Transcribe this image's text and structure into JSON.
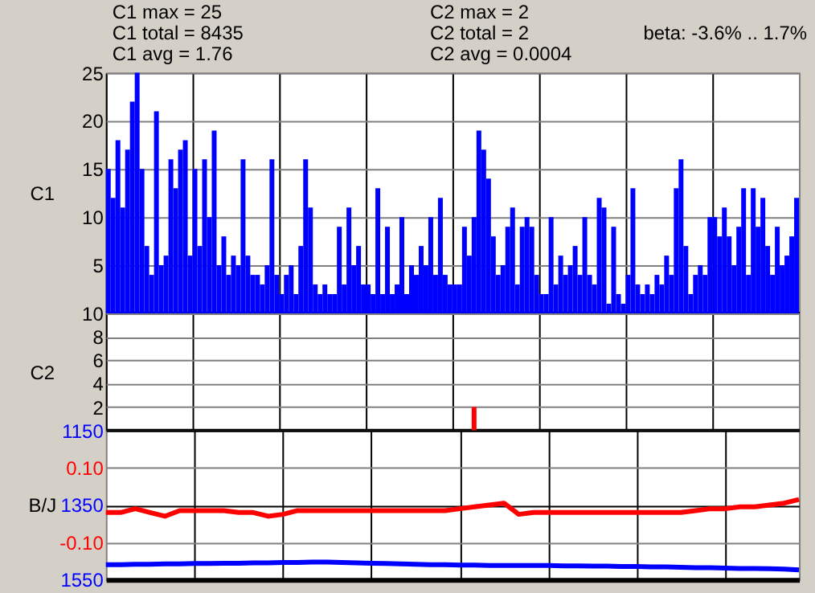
{
  "chart_data": [
    {
      "type": "bar",
      "ylabel": "C1",
      "color": "#0000ff",
      "annotations": [
        "C1 max = 25",
        "C1 total = 8435",
        "C1 avg = 1.76"
      ],
      "categories": [
        null,
        null,
        null,
        null,
        null,
        null,
        null,
        null,
        null,
        null,
        null,
        null,
        null,
        null,
        null,
        null,
        null,
        null,
        null,
        null,
        null,
        null,
        null,
        null,
        null,
        null,
        null,
        null,
        null,
        null,
        null,
        null,
        null,
        null,
        null,
        null,
        null,
        null,
        null,
        null,
        null,
        null,
        null,
        null,
        null,
        null,
        null,
        null,
        null,
        null,
        null,
        null,
        null,
        null,
        null,
        null,
        null,
        null,
        null,
        null,
        null,
        null,
        null,
        null,
        null,
        null,
        null,
        null,
        null,
        null,
        null,
        null,
        null,
        null,
        null,
        null,
        null,
        null,
        null,
        null,
        null,
        null,
        null,
        null,
        null,
        null,
        null,
        null,
        null,
        null,
        null,
        null,
        null,
        null,
        null,
        null,
        null,
        null,
        null,
        null,
        null,
        null,
        null,
        null,
        null,
        null,
        null,
        null,
        null,
        null,
        null,
        null,
        null,
        null,
        null,
        null,
        null,
        null,
        null,
        null,
        null,
        null,
        null,
        null,
        null,
        null,
        null,
        null,
        null,
        null,
        null,
        null,
        null,
        null,
        null,
        null,
        null,
        null,
        null,
        null,
        null,
        null,
        null,
        null
      ],
      "values": [
        15,
        12,
        18,
        11,
        17,
        22,
        25,
        15,
        7,
        4,
        21,
        5,
        6,
        16,
        13,
        17,
        18,
        6,
        15,
        7,
        16,
        10,
        19,
        5,
        8,
        4,
        6,
        5,
        16,
        6,
        4,
        4,
        3,
        5,
        16,
        4,
        2,
        4,
        5,
        2,
        7,
        16,
        11,
        3,
        2,
        3,
        2,
        2,
        9,
        3,
        11,
        5,
        7,
        3,
        3,
        2,
        13,
        2,
        9,
        2,
        3,
        10,
        2,
        5,
        4,
        7,
        5,
        10,
        4,
        12,
        4,
        3,
        3,
        3,
        9,
        6,
        10,
        19,
        17,
        14,
        8,
        4,
        5,
        9,
        11,
        3,
        9,
        10,
        9,
        4,
        2,
        2,
        10,
        3,
        6,
        4,
        5,
        7,
        4,
        10,
        4,
        3,
        12,
        11,
        1,
        9,
        2,
        1,
        4,
        13,
        3,
        2,
        3,
        2,
        4,
        3,
        6,
        4,
        13,
        16,
        7,
        2,
        4,
        5,
        4,
        10,
        10,
        8,
        11,
        8,
        5,
        9,
        13,
        4,
        13,
        9,
        12,
        7,
        4,
        9,
        5,
        6,
        8,
        12
      ],
      "ylim": [
        0,
        25
      ],
      "yticks": [
        5,
        10,
        15,
        20,
        25
      ],
      "grid": true
    },
    {
      "type": "bar",
      "ylabel": "C2",
      "color": "#ff0000",
      "annotations": [
        "C2 max = 2",
        "C2 total = 2",
        "C2 avg = 0.0004"
      ],
      "categories": [
        null,
        null,
        null,
        null,
        null,
        null,
        null,
        null,
        null,
        null,
        null,
        null,
        null,
        null,
        null,
        null,
        null,
        null,
        null,
        null,
        null,
        null,
        null,
        null,
        null,
        null,
        null,
        null,
        null,
        null,
        null,
        null,
        null,
        null,
        null,
        null,
        null,
        null,
        null,
        null,
        null,
        null,
        null,
        null,
        null,
        null,
        null,
        null,
        null,
        null,
        null,
        null,
        null,
        null,
        null,
        null,
        null,
        null,
        null,
        null,
        null,
        null,
        null,
        null,
        null,
        null,
        null,
        null,
        null,
        null,
        null,
        null,
        null,
        null,
        null,
        null,
        null,
        null,
        null,
        null,
        null,
        null,
        null,
        null,
        null,
        null,
        null,
        null,
        null,
        null,
        null,
        null,
        null,
        null,
        null,
        null,
        null,
        null,
        null,
        null,
        null,
        null,
        null,
        null,
        null,
        null,
        null,
        null,
        null,
        null,
        null,
        null,
        null,
        null,
        null,
        null,
        null,
        null,
        null,
        null,
        null,
        null,
        null,
        null,
        null,
        null,
        null,
        null,
        null,
        null,
        null,
        null,
        null,
        null,
        null,
        null,
        null,
        null,
        null,
        null,
        null,
        null,
        null,
        null
      ],
      "values": [
        0,
        0,
        0,
        0,
        0,
        0,
        0,
        0,
        0,
        0,
        0,
        0,
        0,
        0,
        0,
        0,
        0,
        0,
        0,
        0,
        0,
        0,
        0,
        0,
        0,
        0,
        0,
        0,
        0,
        0,
        0,
        0,
        0,
        0,
        0,
        0,
        0,
        0,
        0,
        0,
        0,
        0,
        0,
        0,
        0,
        0,
        0,
        0,
        0,
        0,
        0,
        0,
        0,
        0,
        0,
        0,
        0,
        0,
        0,
        0,
        0,
        0,
        0,
        0,
        0,
        0,
        0,
        0,
        0,
        0,
        0,
        0,
        0,
        0,
        0,
        0,
        2,
        0,
        0,
        0,
        0,
        0,
        0,
        0,
        0,
        0,
        0,
        0,
        0,
        0,
        0,
        0,
        0,
        0,
        0,
        0,
        0,
        0,
        0,
        0,
        0,
        0,
        0,
        0,
        0,
        0,
        0,
        0,
        0,
        0,
        0,
        0,
        0,
        0,
        0,
        0,
        0,
        0,
        0,
        0,
        0,
        0,
        0,
        0,
        0,
        0,
        0,
        0,
        0,
        0,
        0,
        0,
        0,
        0,
        0,
        0,
        0,
        0,
        0,
        0,
        0,
        0,
        0,
        0
      ],
      "ylim": [
        0,
        10
      ],
      "yticks": [
        2,
        4,
        6,
        8,
        10
      ],
      "grid": true
    },
    {
      "type": "line",
      "y2label": "B/J",
      "annotations": [
        "beta: -3.6% .. 1.7%"
      ],
      "categories": [
        null,
        null,
        null,
        null,
        null,
        null,
        null,
        null,
        null,
        null,
        null,
        null,
        null,
        null,
        null,
        null,
        null,
        null,
        null,
        null,
        null,
        null,
        null,
        null,
        null,
        null,
        null,
        null,
        null,
        null,
        null,
        null,
        null,
        null,
        null,
        null,
        null,
        null,
        null,
        null,
        null,
        null,
        null,
        null,
        null,
        null,
        null,
        null
      ],
      "series": [
        {
          "color": "#0000ff",
          "values": [
            1510,
            1510,
            1509,
            1509,
            1508,
            1508,
            1507,
            1507,
            1506,
            1506,
            1505,
            1505,
            1504,
            1504,
            1503,
            1503,
            1504,
            1505,
            1506,
            1507,
            1508,
            1509,
            1510,
            1510,
            1511,
            1511,
            1512,
            1512,
            1512,
            1512,
            1512,
            1513,
            1513,
            1514,
            1514,
            1515,
            1515,
            1516,
            1516,
            1517,
            1518,
            1518,
            1519,
            1520,
            1520,
            1521,
            1522,
            1524
          ]
        },
        {
          "color": "#ff0000",
          "axis": "y2",
          "values": [
            -0.02,
            -0.02,
            -0.01,
            -0.02,
            -0.03,
            -0.015,
            -0.015,
            -0.015,
            -0.015,
            -0.02,
            -0.02,
            -0.03,
            -0.025,
            -0.015,
            -0.015,
            -0.015,
            -0.015,
            -0.015,
            -0.015,
            -0.015,
            -0.015,
            -0.015,
            -0.015,
            -0.015,
            -0.01,
            -0.005,
            0.0,
            0.005,
            -0.025,
            -0.02,
            -0.02,
            -0.02,
            -0.02,
            -0.02,
            -0.02,
            -0.02,
            -0.02,
            -0.02,
            -0.02,
            -0.02,
            -0.015,
            -0.01,
            -0.01,
            -0.005,
            -0.005,
            0.0,
            0.005,
            0.015
          ]
        }
      ],
      "ylim": [
        1550,
        1150
      ],
      "yticks": [
        1150,
        1350,
        1550
      ],
      "y2lim": [
        -0.2,
        0.2
      ],
      "y2ticks": [
        {
          "value": 0.1,
          "label": "0.10"
        },
        {
          "value": -0.1,
          "label": "-0.10"
        }
      ],
      "grid": true
    }
  ]
}
